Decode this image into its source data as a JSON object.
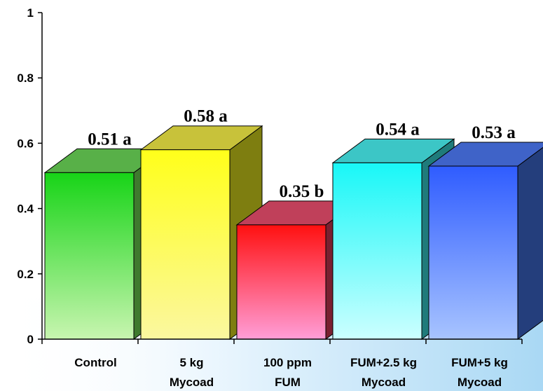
{
  "chart_data": {
    "type": "bar",
    "style": "3d-bars",
    "categories": [
      [
        "Control"
      ],
      [
        "5 kg",
        "Mycoad"
      ],
      [
        "100 ppm",
        "FUM"
      ],
      [
        "FUM+2.5 kg",
        "Mycoad"
      ],
      [
        "FUM+5 kg",
        "Mycoad"
      ]
    ],
    "values": [
      0.51,
      0.58,
      0.35,
      0.54,
      0.53
    ],
    "data_labels": [
      "0.51 a",
      "0.58 a",
      "0.35 b",
      "0.54 a",
      "0.53 a"
    ],
    "bar_colors": [
      {
        "top": "#17d417",
        "bottom": "#c8f5b0",
        "side": "#3f7a2e",
        "cap": "#58b048"
      },
      {
        "top": "#ffff1a",
        "bottom": "#fbf7a0",
        "side": "#7e7e10",
        "cap": "#c8c23a"
      },
      {
        "top": "#ff1010",
        "bottom": "#ff9ed8",
        "side": "#7a2030",
        "cap": "#c0405a"
      },
      {
        "top": "#18f7f7",
        "bottom": "#ccffff",
        "side": "#1f7b7b",
        "cap": "#3cc6c6"
      },
      {
        "top": "#2f5cff",
        "bottom": "#a8c4ff",
        "side": "#243e7c",
        "cap": "#3f63c8"
      }
    ],
    "ylim": [
      0,
      1
    ],
    "yticks": [
      0,
      0.2,
      0.4,
      0.6,
      0.8,
      1
    ],
    "ytick_labels": [
      "0",
      "0.2",
      "0.4",
      "0.6",
      "0.8",
      "1"
    ],
    "title": "",
    "xlabel": "",
    "ylabel": "",
    "grid": false,
    "legend": false
  }
}
